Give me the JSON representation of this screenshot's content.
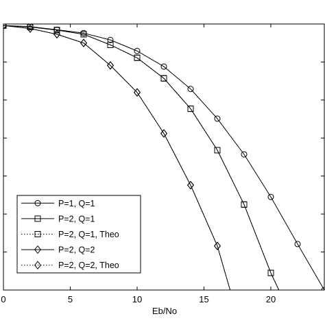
{
  "chart_data": {
    "type": "line",
    "xlabel": "Eb/No",
    "ylabel": "",
    "xlim": [
      0,
      24
    ],
    "ylim_decades": [
      -7,
      0
    ],
    "yscale": "log",
    "xticks": [
      0,
      5,
      10,
      15,
      20
    ],
    "xtick_labels": [
      "0",
      "5",
      "10",
      "15",
      "20"
    ],
    "grid": false,
    "legend_position": "bottom-left",
    "series": [
      {
        "name": "P=1, Q=1",
        "marker": "circle",
        "linestyle": "solid",
        "x": [
          0,
          2,
          4,
          6,
          8,
          10,
          12,
          14,
          16,
          18,
          20,
          22,
          24
        ],
        "log10_y": [
          -0.04,
          -0.07,
          -0.15,
          -0.24,
          -0.42,
          -0.71,
          -1.12,
          -1.71,
          -2.49,
          -3.43,
          -4.55,
          -5.79,
          -7.0
        ]
      },
      {
        "name": "P=2, Q=1",
        "marker": "square",
        "linestyle": "solid",
        "x": [
          0,
          2,
          4,
          6,
          8,
          10,
          12,
          14,
          16,
          18,
          20,
          21
        ],
        "log10_y": [
          -0.04,
          -0.08,
          -0.16,
          -0.27,
          -0.55,
          -0.89,
          -1.43,
          -2.23,
          -3.32,
          -4.75,
          -6.55,
          -7.3
        ]
      },
      {
        "name": "P=2, Q=1, Theo",
        "marker": "square",
        "linestyle": "dotted",
        "x": [
          0,
          2,
          4,
          6,
          8,
          10,
          12,
          14,
          16,
          18,
          20,
          21
        ],
        "log10_y": [
          -0.04,
          -0.08,
          -0.16,
          -0.27,
          -0.55,
          -0.89,
          -1.43,
          -2.23,
          -3.32,
          -4.75,
          -6.55,
          -7.3
        ]
      },
      {
        "name": "P=2, Q=2",
        "marker": "diamond",
        "linestyle": "solid",
        "x": [
          0,
          2,
          4,
          6,
          8,
          10,
          12,
          14,
          16,
          17.2
        ],
        "log10_y": [
          -0.04,
          -0.12,
          -0.27,
          -0.5,
          -1.09,
          -1.8,
          -2.88,
          -4.24,
          -5.84,
          -7.3
        ]
      },
      {
        "name": "P=2, Q=2, Theo",
        "marker": "diamond",
        "linestyle": "dotted",
        "x": [
          0,
          2,
          4,
          6,
          8,
          10,
          12,
          14,
          16,
          17.2
        ],
        "log10_y": [
          -0.04,
          -0.12,
          -0.27,
          -0.5,
          -1.09,
          -1.8,
          -2.88,
          -4.24,
          -5.84,
          -7.3
        ]
      }
    ]
  }
}
